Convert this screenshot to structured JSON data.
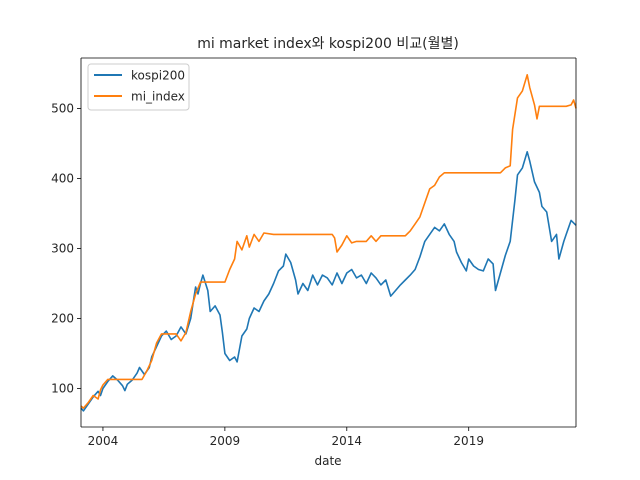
{
  "chart_data": {
    "type": "line",
    "title": "mi market index와 kospi200 비교(월별)",
    "xlabel": "date",
    "ylabel": "",
    "x_ticks": [
      "2004",
      "2009",
      "2014",
      "2019"
    ],
    "y_ticks": [
      "100",
      "200",
      "300",
      "400",
      "500"
    ],
    "xlim": [
      2003.1,
      2023.4
    ],
    "ylim": [
      45,
      572
    ],
    "grid": false,
    "legend_position": "top-left",
    "series": [
      {
        "name": "kospi200",
        "color": "#1f77b4",
        "points": [
          [
            2003.1,
            72
          ],
          [
            2003.2,
            68
          ],
          [
            2003.4,
            78
          ],
          [
            2003.6,
            88
          ],
          [
            2003.8,
            96
          ],
          [
            2003.9,
            90
          ],
          [
            2004.0,
            100
          ],
          [
            2004.2,
            110
          ],
          [
            2004.4,
            118
          ],
          [
            2004.6,
            112
          ],
          [
            2004.8,
            104
          ],
          [
            2004.9,
            97
          ],
          [
            2005.0,
            106
          ],
          [
            2005.2,
            112
          ],
          [
            2005.4,
            122
          ],
          [
            2005.5,
            130
          ],
          [
            2005.7,
            120
          ],
          [
            2005.9,
            130
          ],
          [
            2006.0,
            145
          ],
          [
            2006.2,
            160
          ],
          [
            2006.4,
            175
          ],
          [
            2006.6,
            182
          ],
          [
            2006.8,
            170
          ],
          [
            2007.0,
            175
          ],
          [
            2007.2,
            188
          ],
          [
            2007.4,
            178
          ],
          [
            2007.6,
            200
          ],
          [
            2007.8,
            245
          ],
          [
            2007.9,
            235
          ],
          [
            2008.0,
            250
          ],
          [
            2008.1,
            262
          ],
          [
            2008.3,
            240
          ],
          [
            2008.4,
            210
          ],
          [
            2008.6,
            218
          ],
          [
            2008.8,
            205
          ],
          [
            2008.9,
            180
          ],
          [
            2009.0,
            150
          ],
          [
            2009.2,
            140
          ],
          [
            2009.4,
            145
          ],
          [
            2009.5,
            138
          ],
          [
            2009.7,
            175
          ],
          [
            2009.9,
            185
          ],
          [
            2010.0,
            200
          ],
          [
            2010.2,
            215
          ],
          [
            2010.4,
            210
          ],
          [
            2010.6,
            225
          ],
          [
            2010.8,
            235
          ],
          [
            2011.0,
            250
          ],
          [
            2011.2,
            268
          ],
          [
            2011.4,
            275
          ],
          [
            2011.5,
            292
          ],
          [
            2011.7,
            280
          ],
          [
            2011.9,
            255
          ],
          [
            2012.0,
            235
          ],
          [
            2012.2,
            250
          ],
          [
            2012.4,
            240
          ],
          [
            2012.6,
            262
          ],
          [
            2012.8,
            248
          ],
          [
            2013.0,
            262
          ],
          [
            2013.2,
            258
          ],
          [
            2013.4,
            248
          ],
          [
            2013.6,
            265
          ],
          [
            2013.8,
            250
          ],
          [
            2014.0,
            265
          ],
          [
            2014.2,
            270
          ],
          [
            2014.4,
            258
          ],
          [
            2014.6,
            262
          ],
          [
            2014.8,
            250
          ],
          [
            2015.0,
            265
          ],
          [
            2015.2,
            258
          ],
          [
            2015.4,
            248
          ],
          [
            2015.6,
            255
          ],
          [
            2015.8,
            232
          ],
          [
            2016.0,
            240
          ],
          [
            2016.2,
            248
          ],
          [
            2016.4,
            255
          ],
          [
            2016.6,
            262
          ],
          [
            2016.8,
            270
          ],
          [
            2017.0,
            288
          ],
          [
            2017.2,
            310
          ],
          [
            2017.4,
            320
          ],
          [
            2017.6,
            330
          ],
          [
            2017.8,
            325
          ],
          [
            2018.0,
            335
          ],
          [
            2018.2,
            320
          ],
          [
            2018.4,
            310
          ],
          [
            2018.5,
            295
          ],
          [
            2018.7,
            280
          ],
          [
            2018.9,
            268
          ],
          [
            2019.0,
            285
          ],
          [
            2019.2,
            275
          ],
          [
            2019.4,
            270
          ],
          [
            2019.6,
            268
          ],
          [
            2019.8,
            285
          ],
          [
            2020.0,
            278
          ],
          [
            2020.1,
            240
          ],
          [
            2020.3,
            265
          ],
          [
            2020.5,
            290
          ],
          [
            2020.7,
            310
          ],
          [
            2020.9,
            370
          ],
          [
            2021.0,
            405
          ],
          [
            2021.2,
            415
          ],
          [
            2021.4,
            438
          ],
          [
            2021.5,
            425
          ],
          [
            2021.7,
            395
          ],
          [
            2021.9,
            380
          ],
          [
            2022.0,
            360
          ],
          [
            2022.2,
            352
          ],
          [
            2022.4,
            310
          ],
          [
            2022.6,
            320
          ],
          [
            2022.7,
            285
          ],
          [
            2022.9,
            310
          ],
          [
            2023.0,
            320
          ],
          [
            2023.2,
            340
          ],
          [
            2023.4,
            333
          ]
        ]
      },
      {
        "name": "mi_index",
        "color": "#ff7f0e",
        "points": [
          [
            2003.1,
            75
          ],
          [
            2003.2,
            72
          ],
          [
            2003.4,
            80
          ],
          [
            2003.6,
            90
          ],
          [
            2003.8,
            85
          ],
          [
            2003.9,
            98
          ],
          [
            2004.0,
            105
          ],
          [
            2004.2,
            113
          ],
          [
            2004.4,
            113
          ],
          [
            2004.6,
            113
          ],
          [
            2004.8,
            113
          ],
          [
            2005.0,
            113
          ],
          [
            2005.2,
            113
          ],
          [
            2005.4,
            113
          ],
          [
            2005.6,
            113
          ],
          [
            2005.8,
            125
          ],
          [
            2006.0,
            140
          ],
          [
            2006.2,
            165
          ],
          [
            2006.4,
            178
          ],
          [
            2006.6,
            178
          ],
          [
            2006.8,
            178
          ],
          [
            2007.0,
            178
          ],
          [
            2007.2,
            168
          ],
          [
            2007.4,
            180
          ],
          [
            2007.6,
            210
          ],
          [
            2007.8,
            235
          ],
          [
            2008.0,
            252
          ],
          [
            2008.2,
            252
          ],
          [
            2008.6,
            252
          ],
          [
            2008.9,
            252
          ],
          [
            2009.0,
            252
          ],
          [
            2009.2,
            270
          ],
          [
            2009.4,
            285
          ],
          [
            2009.5,
            310
          ],
          [
            2009.7,
            298
          ],
          [
            2009.9,
            318
          ],
          [
            2010.0,
            302
          ],
          [
            2010.2,
            320
          ],
          [
            2010.4,
            310
          ],
          [
            2010.6,
            322
          ],
          [
            2011.0,
            320
          ],
          [
            2011.5,
            320
          ],
          [
            2012.0,
            320
          ],
          [
            2012.5,
            320
          ],
          [
            2013.0,
            320
          ],
          [
            2013.4,
            320
          ],
          [
            2013.5,
            315
          ],
          [
            2013.6,
            295
          ],
          [
            2013.8,
            305
          ],
          [
            2014.0,
            318
          ],
          [
            2014.2,
            308
          ],
          [
            2014.4,
            310
          ],
          [
            2014.6,
            310
          ],
          [
            2014.8,
            310
          ],
          [
            2015.0,
            318
          ],
          [
            2015.2,
            310
          ],
          [
            2015.4,
            318
          ],
          [
            2015.6,
            318
          ],
          [
            2016.0,
            318
          ],
          [
            2016.4,
            318
          ],
          [
            2016.6,
            325
          ],
          [
            2016.8,
            335
          ],
          [
            2017.0,
            345
          ],
          [
            2017.2,
            365
          ],
          [
            2017.4,
            385
          ],
          [
            2017.6,
            390
          ],
          [
            2017.8,
            402
          ],
          [
            2018.0,
            408
          ],
          [
            2018.2,
            408
          ],
          [
            2018.6,
            408
          ],
          [
            2019.0,
            408
          ],
          [
            2019.5,
            408
          ],
          [
            2020.0,
            408
          ],
          [
            2020.3,
            408
          ],
          [
            2020.5,
            415
          ],
          [
            2020.7,
            418
          ],
          [
            2020.8,
            470
          ],
          [
            2021.0,
            515
          ],
          [
            2021.2,
            525
          ],
          [
            2021.4,
            548
          ],
          [
            2021.5,
            530
          ],
          [
            2021.7,
            505
          ],
          [
            2021.8,
            485
          ],
          [
            2021.9,
            503
          ],
          [
            2022.2,
            503
          ],
          [
            2022.6,
            503
          ],
          [
            2023.0,
            503
          ],
          [
            2023.2,
            505
          ],
          [
            2023.3,
            512
          ],
          [
            2023.4,
            500
          ]
        ]
      }
    ]
  }
}
